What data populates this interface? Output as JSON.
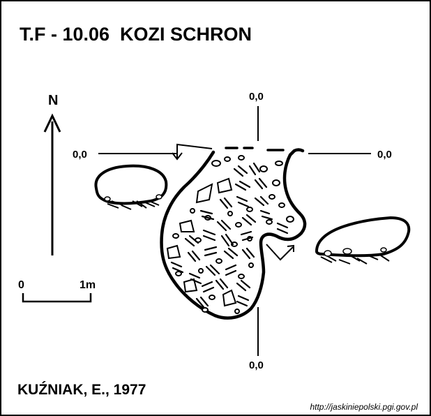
{
  "title": "T.F - 10.06  KOZI SCHRON",
  "north": "N",
  "scale": {
    "zero": "0",
    "one": "1m"
  },
  "datum": {
    "top": "0,0",
    "left": "0,0",
    "right": "0,0",
    "bottom": "0,0"
  },
  "author": "KUŹNIAK, E., 1977",
  "source_url": "http://jaskiniepolski.pgi.gov.pl",
  "colors": {
    "ink": "#000000",
    "paper": "#ffffff"
  }
}
